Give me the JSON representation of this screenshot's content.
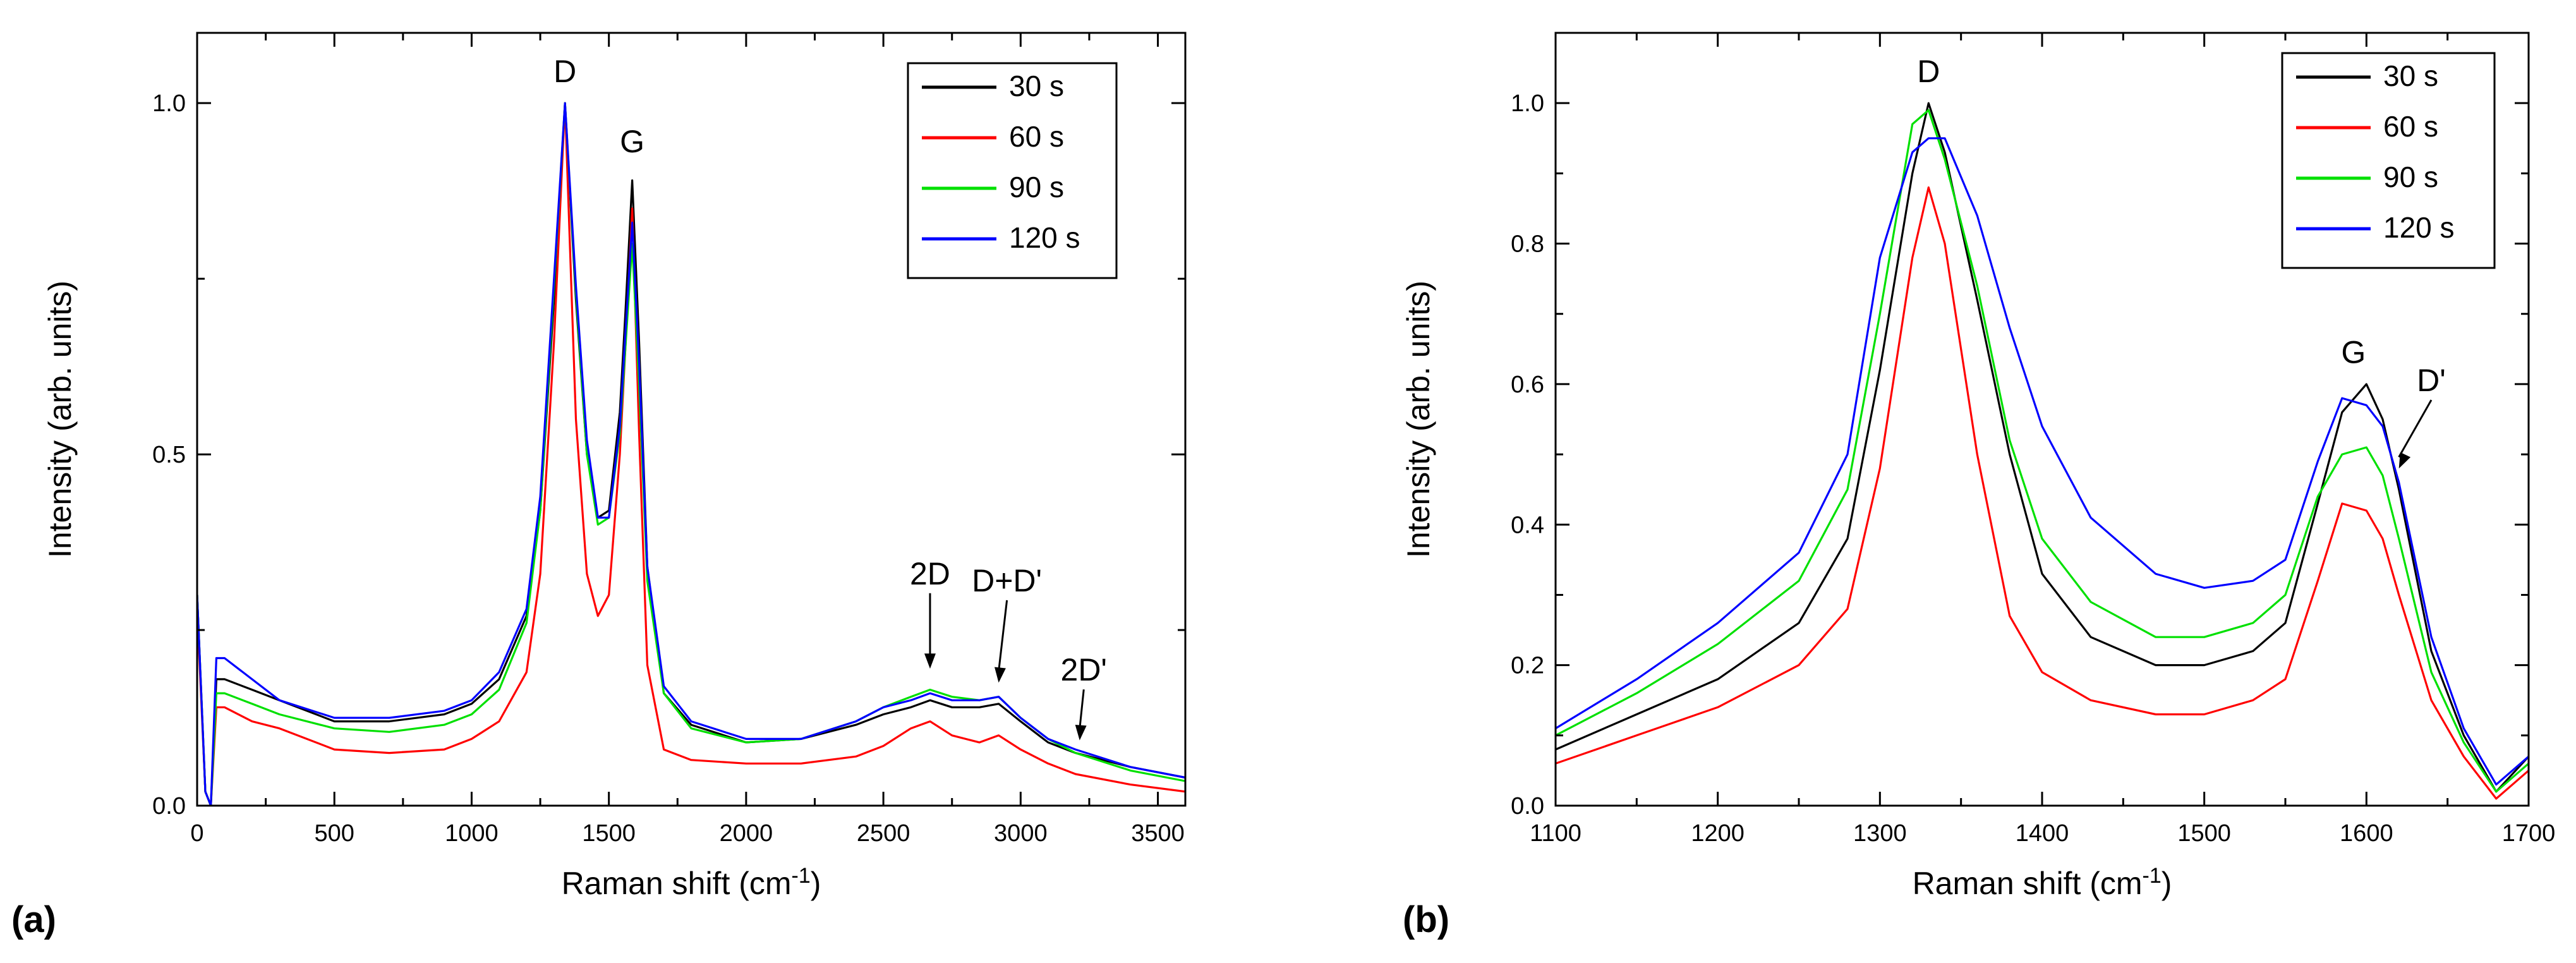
{
  "chart_data": [
    {
      "type": "line",
      "panel_label": "(a)",
      "xlabel": "Raman shift (cm",
      "xlabel_sup": "-1",
      "xlabel_end": ")",
      "ylabel": "Intensity (arb. units)",
      "xlim": [
        0,
        3600
      ],
      "ylim": [
        0,
        1.1
      ],
      "xticks": [
        0,
        500,
        1000,
        1500,
        2000,
        2500,
        3000,
        3500
      ],
      "xtick_labels": [
        "0",
        "500",
        "1000",
        "1500",
        "2000",
        "2500",
        "3000",
        "3500"
      ],
      "yticks": [
        0.0,
        0.5,
        1.0
      ],
      "ytick_labels": [
        "0.0",
        "0.5",
        "1.0"
      ],
      "legend_position": "top-right",
      "annotations": [
        {
          "text": "D",
          "x": 1340,
          "y": 1.03
        },
        {
          "text": "G",
          "x": 1585,
          "y": 0.93
        },
        {
          "text": "2D",
          "x": 2670,
          "y": 0.315,
          "arrow_to": [
            2670,
            0.195
          ]
        },
        {
          "text": "D+D'",
          "x": 2950,
          "y": 0.305,
          "arrow_to": [
            2920,
            0.175
          ]
        },
        {
          "text": "2D'",
          "x": 3230,
          "y": 0.178,
          "arrow_to": [
            3215,
            0.093
          ]
        }
      ],
      "series": [
        {
          "name": "30 s",
          "color": "#000000",
          "x": [
            0,
            30,
            50,
            70,
            100,
            200,
            300,
            500,
            700,
            900,
            1000,
            1100,
            1200,
            1250,
            1300,
            1340,
            1380,
            1420,
            1460,
            1500,
            1540,
            1560,
            1585,
            1610,
            1640,
            1700,
            1800,
            2000,
            2200,
            2400,
            2500,
            2600,
            2670,
            2750,
            2850,
            2920,
            3000,
            3100,
            3200,
            3400,
            3600
          ],
          "y": [
            0.3,
            0.02,
            0.0,
            0.18,
            0.18,
            0.165,
            0.15,
            0.12,
            0.12,
            0.13,
            0.145,
            0.18,
            0.27,
            0.42,
            0.72,
            1.0,
            0.72,
            0.5,
            0.41,
            0.42,
            0.56,
            0.7,
            0.89,
            0.66,
            0.34,
            0.16,
            0.115,
            0.09,
            0.095,
            0.115,
            0.13,
            0.14,
            0.15,
            0.14,
            0.14,
            0.145,
            0.12,
            0.09,
            0.075,
            0.055,
            0.04
          ]
        },
        {
          "name": "60 s",
          "color": "#ff0000",
          "x": [
            0,
            30,
            50,
            70,
            100,
            200,
            300,
            500,
            700,
            900,
            1000,
            1100,
            1200,
            1250,
            1300,
            1340,
            1380,
            1420,
            1460,
            1500,
            1540,
            1560,
            1585,
            1610,
            1640,
            1700,
            1800,
            2000,
            2200,
            2400,
            2500,
            2600,
            2670,
            2750,
            2850,
            2920,
            3000,
            3100,
            3200,
            3400,
            3600
          ],
          "y": [
            0.28,
            0.02,
            0.0,
            0.14,
            0.14,
            0.12,
            0.11,
            0.08,
            0.075,
            0.08,
            0.095,
            0.12,
            0.19,
            0.33,
            0.66,
            1.0,
            0.55,
            0.33,
            0.27,
            0.3,
            0.5,
            0.65,
            0.85,
            0.53,
            0.2,
            0.08,
            0.065,
            0.06,
            0.06,
            0.07,
            0.085,
            0.11,
            0.12,
            0.1,
            0.09,
            0.1,
            0.08,
            0.06,
            0.045,
            0.03,
            0.02
          ]
        },
        {
          "name": "90 s",
          "color": "#00e000",
          "x": [
            0,
            30,
            50,
            70,
            100,
            200,
            300,
            500,
            700,
            900,
            1000,
            1100,
            1200,
            1250,
            1300,
            1340,
            1380,
            1420,
            1460,
            1500,
            1540,
            1560,
            1585,
            1610,
            1640,
            1700,
            1800,
            2000,
            2200,
            2400,
            2500,
            2600,
            2670,
            2750,
            2850,
            2920,
            3000,
            3100,
            3200,
            3400,
            3600
          ],
          "y": [
            0.3,
            0.02,
            0.0,
            0.16,
            0.16,
            0.145,
            0.13,
            0.11,
            0.105,
            0.115,
            0.13,
            0.165,
            0.26,
            0.42,
            0.74,
            1.0,
            0.73,
            0.5,
            0.4,
            0.41,
            0.53,
            0.65,
            0.8,
            0.6,
            0.32,
            0.16,
            0.11,
            0.09,
            0.095,
            0.12,
            0.14,
            0.155,
            0.165,
            0.155,
            0.15,
            0.155,
            0.125,
            0.095,
            0.075,
            0.05,
            0.035
          ]
        },
        {
          "name": "120 s",
          "color": "#0000ff",
          "x": [
            0,
            30,
            50,
            70,
            100,
            200,
            300,
            500,
            700,
            900,
            1000,
            1100,
            1200,
            1250,
            1300,
            1340,
            1380,
            1420,
            1460,
            1500,
            1540,
            1560,
            1585,
            1610,
            1640,
            1700,
            1800,
            2000,
            2200,
            2400,
            2500,
            2600,
            2670,
            2750,
            2850,
            2920,
            3000,
            3100,
            3200,
            3400,
            3600
          ],
          "y": [
            0.3,
            0.02,
            0.0,
            0.21,
            0.21,
            0.18,
            0.15,
            0.125,
            0.125,
            0.135,
            0.15,
            0.19,
            0.28,
            0.44,
            0.75,
            1.0,
            0.74,
            0.52,
            0.41,
            0.41,
            0.54,
            0.67,
            0.83,
            0.63,
            0.34,
            0.17,
            0.12,
            0.095,
            0.095,
            0.12,
            0.14,
            0.15,
            0.16,
            0.15,
            0.15,
            0.155,
            0.125,
            0.095,
            0.08,
            0.055,
            0.04
          ]
        }
      ]
    },
    {
      "type": "line",
      "panel_label": "(b)",
      "xlabel": "Raman shift (cm",
      "xlabel_sup": "-1",
      "xlabel_end": ")",
      "ylabel": "Intensity (arb. units)",
      "xlim": [
        1100,
        1700
      ],
      "ylim": [
        0,
        1.1
      ],
      "xticks": [
        1100,
        1200,
        1300,
        1400,
        1500,
        1600,
        1700
      ],
      "xtick_labels": [
        "1100",
        "1200",
        "1300",
        "1400",
        "1500",
        "1600",
        "1700"
      ],
      "yticks": [
        0.0,
        0.2,
        0.4,
        0.6,
        0.8,
        1.0
      ],
      "ytick_labels": [
        "0.0",
        "0.2",
        "0.4",
        "0.6",
        "0.8",
        "1.0"
      ],
      "legend_position": "top-right",
      "annotations": [
        {
          "text": "D",
          "x": 1330,
          "y": 1.03
        },
        {
          "text": "G",
          "x": 1592,
          "y": 0.63
        },
        {
          "text": "D'",
          "x": 1640,
          "y": 0.59,
          "arrow_to": [
            1620,
            0.48
          ]
        }
      ],
      "series": [
        {
          "name": "30 s",
          "color": "#000000",
          "x": [
            1100,
            1150,
            1200,
            1250,
            1280,
            1300,
            1320,
            1330,
            1340,
            1360,
            1380,
            1400,
            1430,
            1470,
            1500,
            1530,
            1550,
            1570,
            1585,
            1600,
            1610,
            1620,
            1640,
            1660,
            1680,
            1700
          ],
          "y": [
            0.08,
            0.13,
            0.18,
            0.26,
            0.38,
            0.62,
            0.9,
            1.0,
            0.93,
            0.72,
            0.5,
            0.33,
            0.24,
            0.2,
            0.2,
            0.22,
            0.26,
            0.43,
            0.56,
            0.6,
            0.55,
            0.45,
            0.22,
            0.1,
            0.02,
            0.07
          ]
        },
        {
          "name": "60 s",
          "color": "#ff0000",
          "x": [
            1100,
            1150,
            1200,
            1250,
            1280,
            1300,
            1320,
            1330,
            1340,
            1360,
            1380,
            1400,
            1430,
            1470,
            1500,
            1530,
            1550,
            1570,
            1585,
            1600,
            1610,
            1620,
            1640,
            1660,
            1680,
            1700
          ],
          "y": [
            0.06,
            0.1,
            0.14,
            0.2,
            0.28,
            0.48,
            0.78,
            0.88,
            0.8,
            0.5,
            0.27,
            0.19,
            0.15,
            0.13,
            0.13,
            0.15,
            0.18,
            0.32,
            0.43,
            0.42,
            0.38,
            0.3,
            0.15,
            0.07,
            0.01,
            0.05
          ]
        },
        {
          "name": "90 s",
          "color": "#00e000",
          "x": [
            1100,
            1150,
            1200,
            1250,
            1280,
            1300,
            1320,
            1330,
            1340,
            1360,
            1380,
            1400,
            1430,
            1470,
            1500,
            1530,
            1550,
            1570,
            1585,
            1600,
            1610,
            1620,
            1640,
            1660,
            1680,
            1700
          ],
          "y": [
            0.1,
            0.16,
            0.23,
            0.32,
            0.45,
            0.7,
            0.97,
            0.99,
            0.92,
            0.74,
            0.52,
            0.38,
            0.29,
            0.24,
            0.24,
            0.26,
            0.3,
            0.44,
            0.5,
            0.51,
            0.47,
            0.38,
            0.19,
            0.09,
            0.02,
            0.06
          ]
        },
        {
          "name": "120 s",
          "color": "#0000ff",
          "x": [
            1100,
            1150,
            1200,
            1250,
            1280,
            1300,
            1320,
            1330,
            1340,
            1360,
            1380,
            1400,
            1430,
            1470,
            1500,
            1530,
            1550,
            1570,
            1585,
            1600,
            1610,
            1620,
            1640,
            1660,
            1680,
            1700
          ],
          "y": [
            0.11,
            0.18,
            0.26,
            0.36,
            0.5,
            0.78,
            0.93,
            0.95,
            0.95,
            0.84,
            0.68,
            0.54,
            0.41,
            0.33,
            0.31,
            0.32,
            0.35,
            0.49,
            0.58,
            0.57,
            0.54,
            0.46,
            0.24,
            0.11,
            0.03,
            0.07
          ]
        }
      ]
    }
  ]
}
